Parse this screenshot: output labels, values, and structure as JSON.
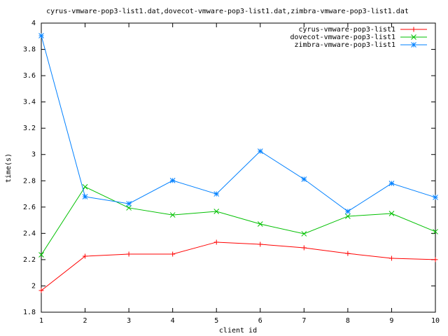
{
  "chart_data": {
    "type": "line",
    "title": "cyrus-vmware-pop3-list1.dat,dovecot-vmware-pop3-list1.dat,zimbra-vmware-pop3-list1.dat",
    "x_label": "client id",
    "y_label": "time(s)",
    "x": [
      1,
      2,
      3,
      4,
      5,
      6,
      7,
      8,
      9,
      10
    ],
    "series": [
      {
        "name": "cyrus-vmware-pop3-list1",
        "color": "#ff0000",
        "marker": "plus",
        "values": [
          1.965,
          2.226,
          2.242,
          2.242,
          2.333,
          2.317,
          2.29,
          2.247,
          2.21,
          2.2
        ]
      },
      {
        "name": "dovecot-vmware-pop3-list1",
        "color": "#00c000",
        "marker": "cross",
        "values": [
          2.237,
          2.754,
          2.594,
          2.54,
          2.567,
          2.471,
          2.397,
          2.53,
          2.551,
          2.413
        ]
      },
      {
        "name": "zimbra-vmware-pop3-list1",
        "color": "#0080ff",
        "marker": "star",
        "values": [
          3.904,
          2.679,
          2.626,
          2.802,
          2.7,
          3.025,
          2.812,
          2.567,
          2.78,
          2.674
        ]
      }
    ],
    "xlim": [
      1,
      10
    ],
    "xticks": [
      1,
      2,
      3,
      4,
      5,
      6,
      7,
      8,
      9,
      10
    ],
    "ylim": [
      1.8,
      4
    ],
    "yticks": [
      1.8,
      2,
      2.2,
      2.4,
      2.6,
      2.8,
      3,
      3.2,
      3.4,
      3.6,
      3.8,
      4
    ],
    "legend": "top-right"
  }
}
